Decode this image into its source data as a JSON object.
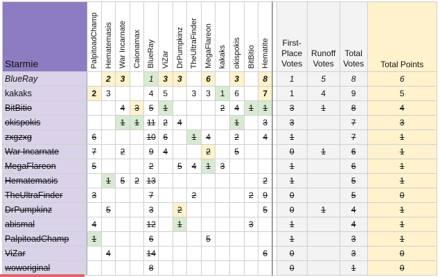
{
  "corner_label": "Starmie",
  "players": [
    "PalpitoadChamp",
    "Hematemasis",
    "War Incarnate",
    "Caionamax",
    "BlueRay",
    "ViZar",
    "DrPumpkinz",
    "TheUltraFinder",
    "MegaFlareon",
    "kakaks",
    "okispokis",
    "BitBitio",
    "Hematite"
  ],
  "stat_headers": {
    "first_place": "First-Place Votes",
    "runoff": "Runoff Votes",
    "total_votes": "Total Votes",
    "total_points": "Total Points"
  },
  "rows": [
    {
      "name": "BlueRay",
      "style": "italic",
      "cells": [
        "",
        "2",
        "3",
        "",
        "1",
        "3",
        "3",
        "",
        "6",
        "",
        "3",
        "",
        "8"
      ],
      "first": "1",
      "runoff": "5",
      "total": "8",
      "points": "6"
    },
    {
      "name": "kakaks",
      "style": "normal",
      "cells": [
        "2",
        "3",
        "",
        "",
        "4",
        "5",
        "",
        "3",
        "3",
        "1",
        "6",
        "",
        "7"
      ],
      "first": "1",
      "runoff": "4",
      "total": "9",
      "points": "5"
    },
    {
      "name": "BitBitio",
      "style": "strike",
      "cells": [
        "",
        "",
        "4",
        "3",
        "5",
        "1",
        "",
        "",
        "",
        "2",
        "4",
        "1",
        "1"
      ],
      "first": "3",
      "runoff": "1",
      "total": "8",
      "points": "4"
    },
    {
      "name": "okispokis",
      "style": "strike",
      "cells": [
        "",
        "",
        "1",
        "1",
        "11",
        "2",
        "4",
        "",
        "",
        "",
        "1",
        "",
        "3"
      ],
      "first": "3",
      "runoff": "",
      "total": "7",
      "points": "3"
    },
    {
      "name": "zxgzxg",
      "style": "strike",
      "cells": [
        "6",
        "",
        "",
        "",
        "10",
        "6",
        "",
        "1",
        "4",
        "",
        "2",
        "",
        "4"
      ],
      "first": "1",
      "runoff": "",
      "total": "7",
      "points": "1"
    },
    {
      "name": "War Incarnate",
      "style": "strike",
      "cells": [
        "7",
        "",
        "2",
        "",
        "9",
        "4",
        "",
        "",
        "2",
        "",
        "5",
        "",
        ""
      ],
      "first": "0",
      "runoff": "1",
      "total": "6",
      "points": "1"
    },
    {
      "name": "MegaFlareon",
      "style": "strike",
      "cells": [
        "5",
        "",
        "",
        "",
        "2",
        "",
        "5",
        "4",
        "1",
        "3",
        "",
        "",
        ""
      ],
      "first": "1",
      "runoff": "",
      "total": "6",
      "points": "1"
    },
    {
      "name": "Hematemasis",
      "style": "strike",
      "cells": [
        "",
        "1",
        "5",
        "2",
        "13",
        "",
        "",
        "",
        "",
        "",
        "",
        "",
        "2"
      ],
      "first": "1",
      "runoff": "",
      "total": "5",
      "points": "1"
    },
    {
      "name": "TheUltraFinder",
      "style": "strike",
      "cells": [
        "3",
        "",
        "",
        "",
        "7",
        "",
        "",
        "2",
        "",
        "",
        "",
        "2",
        "9"
      ],
      "first": "0",
      "runoff": "",
      "total": "5",
      "points": "0"
    },
    {
      "name": "DrPumpkinz",
      "style": "strike",
      "cells": [
        "",
        "5",
        "",
        "",
        "3",
        "",
        "2",
        "",
        "",
        "",
        "",
        "",
        "5"
      ],
      "first": "0",
      "runoff": "1",
      "total": "4",
      "points": "1"
    },
    {
      "name": "abismal",
      "style": "strike",
      "cells": [
        "4",
        "",
        "",
        "",
        "12",
        "",
        "1",
        "",
        "",
        "",
        "",
        "3",
        ""
      ],
      "first": "1",
      "runoff": "",
      "total": "4",
      "points": "1"
    },
    {
      "name": "PalpitoadChamp",
      "style": "strike",
      "cells": [
        "1",
        "",
        "",
        "",
        "6",
        "",
        "",
        "",
        "5",
        "",
        "",
        "",
        ""
      ],
      "first": "1",
      "runoff": "",
      "total": "3",
      "points": "1"
    },
    {
      "name": "ViZar",
      "style": "strike",
      "cells": [
        "",
        "4",
        "",
        "",
        "14",
        "",
        "",
        "",
        "",
        "",
        "",
        "",
        "6"
      ],
      "first": "0",
      "runoff": "",
      "total": "3",
      "points": "0"
    },
    {
      "name": "woworiginal",
      "style": "strike",
      "cells": [
        "",
        "",
        "",
        "",
        "8",
        "",
        "",
        "",
        "",
        "",
        "",
        "",
        ""
      ],
      "first": "0",
      "runoff": "",
      "total": "1",
      "points": "0"
    }
  ],
  "cell_colors": {
    "name_bg": "#d9d2e9",
    "corner_bg": "#8e7cc3",
    "highlight_yellow": "#fff2cc",
    "highlight_green": "#d9ead3",
    "stat_bg": "#f3f3f3"
  }
}
